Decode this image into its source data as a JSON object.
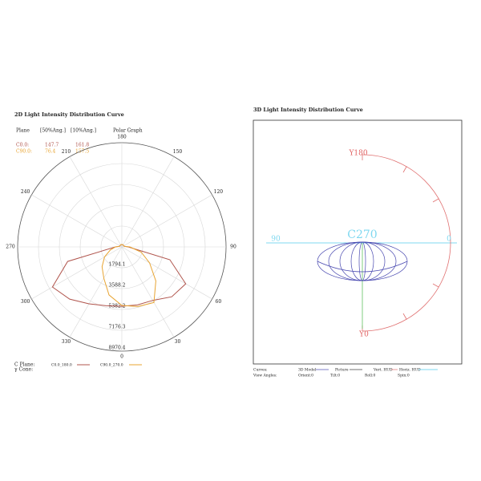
{
  "chart_data": {
    "type": "polar",
    "title": "2D Light Intensity Distribution Curve",
    "subtitle": "Polar Graph",
    "table": {
      "header": [
        "Plane",
        "[50%Ang.]",
        "[10%Ang.]"
      ],
      "rows": [
        [
          "C0.0:",
          147.7,
          161.8
        ],
        [
          "C90.0:",
          76.4,
          157.5
        ]
      ]
    },
    "theta": [
      0,
      15,
      30,
      45,
      60,
      75,
      90,
      105,
      120,
      135,
      150,
      165,
      180,
      195,
      210,
      225,
      240,
      255,
      270,
      285,
      300,
      315,
      330,
      345
    ],
    "series": [
      {
        "name": "C0.0_180.0",
        "color": "#b0544c",
        "values": [
          5106,
          5175,
          5313,
          6072,
          6348,
          4278,
          552,
          200,
          200,
          200,
          200,
          200,
          200,
          200,
          200,
          200,
          200,
          200,
          552,
          4830,
          6900,
          6348,
          5658,
          5244
        ]
      },
      {
        "name": "C90.0_270.0",
        "color": "#e8a432",
        "values": [
          5037,
          5313,
          5520,
          4140,
          2760,
          1725,
          690,
          207,
          207,
          207,
          207,
          207,
          207,
          207,
          207,
          207,
          207,
          207,
          552,
          1035,
          1725,
          2415,
          3105,
          4278
        ]
      }
    ],
    "rlim": [
      0,
      8970.4
    ],
    "rticks": [
      1794.1,
      3588.2,
      5382.2,
      7176.3,
      8970.4
    ],
    "thetaticks": [
      0,
      30,
      60,
      90,
      120,
      150,
      180,
      210,
      240,
      270,
      300,
      330
    ],
    "legend_titles": [
      "C Plane:",
      "γ Cone:"
    ]
  },
  "panel_3d": {
    "title": "3D Light Intensity Distribution Curve",
    "axis_labels": [
      "Y180",
      "Y0",
      "C270",
      "90",
      "0"
    ],
    "footer": {
      "curves": [
        "Curves:",
        "3D Model",
        "Picture",
        "Vert. HUD",
        "Horiz. HUD"
      ],
      "angles": [
        "View Angles:",
        "Orient:0",
        "Tilt:0",
        "Roll:0",
        "Spin:0"
      ]
    }
  }
}
